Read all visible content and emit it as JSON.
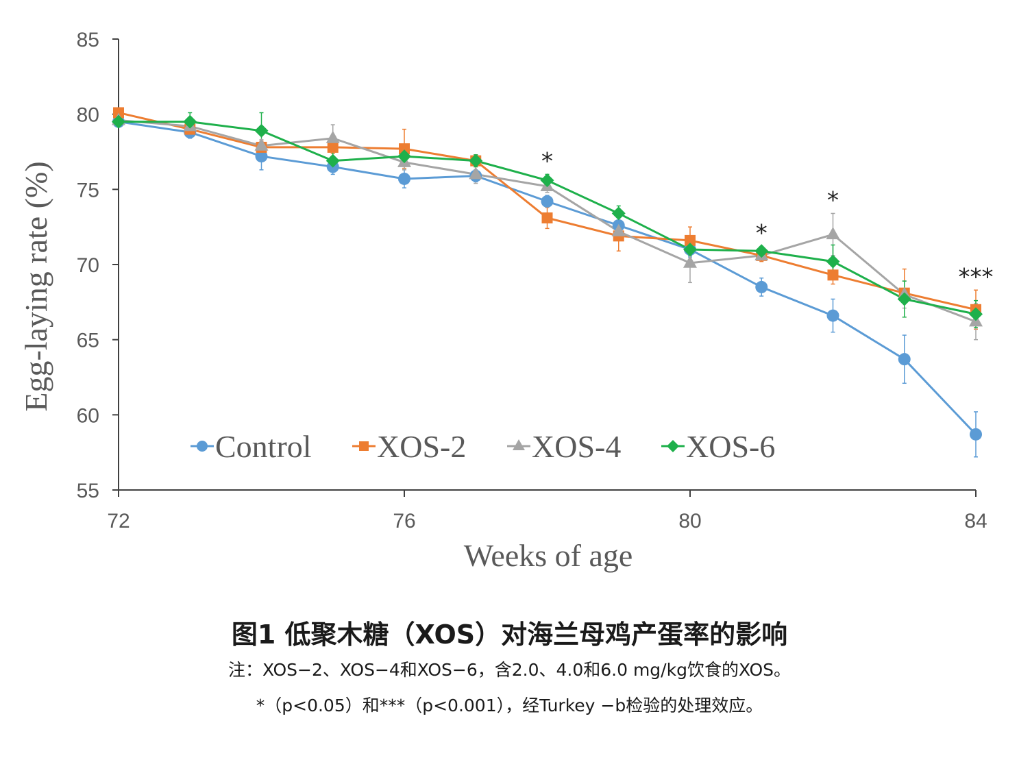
{
  "chart_data": {
    "type": "line",
    "xlabel": "Weeks of age",
    "ylabel": "Egg-laying rate (%)",
    "xlim": [
      72,
      84
    ],
    "ylim": [
      55,
      85
    ],
    "x_ticks": [
      "72",
      "76",
      "80",
      "84"
    ],
    "y_ticks": [
      "55",
      "60",
      "65",
      "70",
      "75",
      "80",
      "85"
    ],
    "x": [
      72,
      73,
      74,
      75,
      76,
      77,
      78,
      79,
      80,
      81,
      82,
      83,
      84
    ],
    "series": [
      {
        "name": "Control",
        "color": "#5B9BD5",
        "marker": "circle",
        "values": [
          79.5,
          78.8,
          77.2,
          76.5,
          75.7,
          75.9,
          74.2,
          72.6,
          71.0,
          68.5,
          66.6,
          63.7,
          58.7
        ],
        "errors": [
          0.3,
          0.4,
          0.9,
          0.5,
          0.6,
          0.4,
          0.4,
          0.6,
          0.5,
          0.6,
          1.1,
          1.6,
          1.5
        ]
      },
      {
        "name": "XOS-2",
        "color": "#ED7D31",
        "marker": "square",
        "values": [
          80.1,
          79.0,
          77.8,
          77.8,
          77.7,
          76.9,
          73.1,
          71.9,
          71.6,
          70.6,
          69.3,
          68.1,
          67.0
        ],
        "errors": [
          0.3,
          0.3,
          0.4,
          0.4,
          1.3,
          0.4,
          0.7,
          1.0,
          0.9,
          0.4,
          0.6,
          1.6,
          1.3
        ]
      },
      {
        "name": "XOS-4",
        "color": "#A5A5A5",
        "marker": "triangle",
        "values": [
          79.6,
          79.2,
          77.9,
          78.4,
          76.8,
          76.0,
          75.2,
          72.2,
          70.1,
          70.6,
          72.0,
          68.0,
          66.2
        ],
        "errors": [
          0.3,
          0.3,
          0.4,
          0.9,
          0.5,
          0.6,
          0.4,
          0.6,
          1.3,
          0.3,
          1.4,
          0.9,
          1.2
        ]
      },
      {
        "name": "XOS-6",
        "color": "#1EB04B",
        "marker": "diamond",
        "values": [
          79.5,
          79.5,
          78.9,
          76.9,
          77.2,
          76.9,
          75.6,
          73.4,
          71.0,
          70.9,
          70.2,
          67.7,
          66.7
        ],
        "errors": [
          0.3,
          0.6,
          1.2,
          0.7,
          0.6,
          0.4,
          0.4,
          0.5,
          0.4,
          0.3,
          1.1,
          1.2,
          0.9
        ]
      }
    ],
    "annotations": [
      {
        "x": 78,
        "text": "*"
      },
      {
        "x": 81,
        "text": "*"
      },
      {
        "x": 82,
        "text": "*"
      },
      {
        "x": 84,
        "text": "***"
      }
    ],
    "legend_position": "bottom-inside",
    "grid": false
  },
  "caption": {
    "title": "图1 低聚木糖（XOS）对海兰母鸡产蛋率的影响",
    "note1": "注：XOS−2、XOS−4和XOS−6，含2.0、4.0和6.0 mg/kg饮食的XOS。",
    "note2": "*（p<0.05）和***（p<0.001），经Turkey −b检验的处理效应。"
  }
}
